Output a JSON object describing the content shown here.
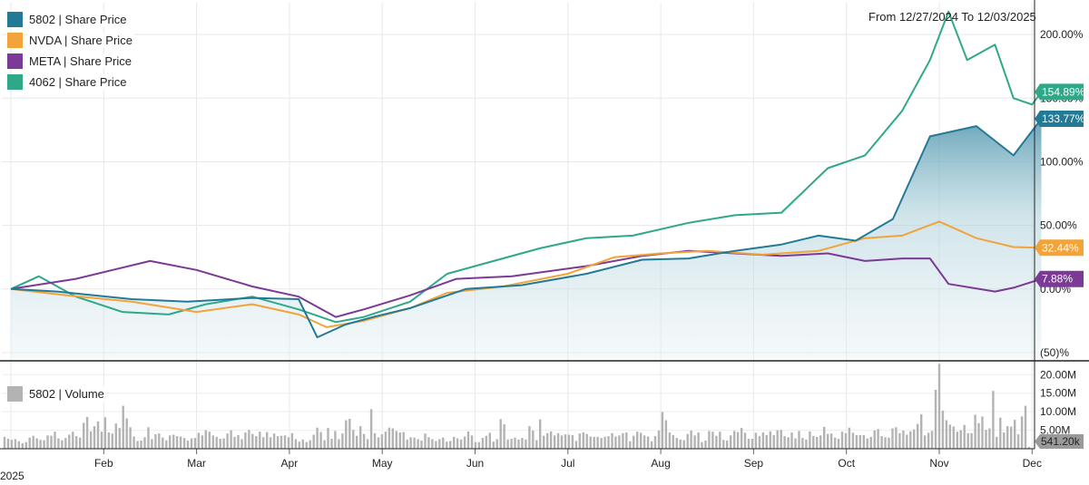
{
  "header": {
    "date_range": "From 12/27/2024 To 12/03/2025"
  },
  "chart_data": {
    "type": "line",
    "x_axis": {
      "months": [
        "Feb",
        "Mar",
        "Apr",
        "May",
        "Jun",
        "Jul",
        "Aug",
        "Sep",
        "Oct",
        "Nov",
        "Dec"
      ],
      "year_label": "2025"
    },
    "y_axis": {
      "tick_labels": [
        "200.00%",
        "150.00%",
        "100.00%",
        "50.00%",
        "0.00%",
        "(50)%"
      ],
      "tick_values": [
        200,
        150,
        100,
        50,
        0,
        -50
      ],
      "range": [
        -55,
        225
      ],
      "grid": true
    },
    "series": [
      {
        "name": "5802 | Share Price",
        "color": "#237a96",
        "end_label": "133.77%",
        "filled": true,
        "points": [
          [
            0,
            0
          ],
          [
            0.5,
            -2
          ],
          [
            1.3,
            -8
          ],
          [
            1.9,
            -10
          ],
          [
            2.6,
            -7
          ],
          [
            3.1,
            -8
          ],
          [
            3.3,
            -38
          ],
          [
            3.6,
            -28
          ],
          [
            3.9,
            -22
          ],
          [
            4.3,
            -15
          ],
          [
            4.9,
            0
          ],
          [
            5.5,
            3
          ],
          [
            6.2,
            12
          ],
          [
            6.8,
            23
          ],
          [
            7.3,
            24
          ],
          [
            7.8,
            30
          ],
          [
            8.3,
            35
          ],
          [
            8.7,
            42
          ],
          [
            9.1,
            38
          ],
          [
            9.5,
            55
          ],
          [
            9.9,
            120
          ],
          [
            10.4,
            128
          ],
          [
            10.8,
            105
          ],
          [
            11.1,
            133.77
          ]
        ]
      },
      {
        "name": "NVDA | Share Price",
        "color": "#f2a33a",
        "end_label": "32.44%",
        "filled": false,
        "points": [
          [
            0,
            0
          ],
          [
            0.6,
            -5
          ],
          [
            1.3,
            -10
          ],
          [
            2.0,
            -18
          ],
          [
            2.6,
            -12
          ],
          [
            3.1,
            -20
          ],
          [
            3.4,
            -30
          ],
          [
            3.8,
            -25
          ],
          [
            4.3,
            -15
          ],
          [
            4.7,
            -3
          ],
          [
            5.3,
            2
          ],
          [
            6.0,
            12
          ],
          [
            6.5,
            25
          ],
          [
            7.0,
            28
          ],
          [
            7.5,
            30
          ],
          [
            8.1,
            27
          ],
          [
            8.7,
            30
          ],
          [
            9.2,
            40
          ],
          [
            9.6,
            42
          ],
          [
            10.0,
            53
          ],
          [
            10.4,
            40
          ],
          [
            10.8,
            33
          ],
          [
            11.1,
            32.44
          ]
        ]
      },
      {
        "name": "META | Share Price",
        "color": "#7b3a96",
        "end_label": "7.88%",
        "filled": false,
        "points": [
          [
            0,
            0
          ],
          [
            0.7,
            8
          ],
          [
            1.5,
            22
          ],
          [
            2.0,
            15
          ],
          [
            2.6,
            2
          ],
          [
            3.1,
            -6
          ],
          [
            3.5,
            -22
          ],
          [
            3.8,
            -16
          ],
          [
            4.3,
            -5
          ],
          [
            4.8,
            8
          ],
          [
            5.4,
            10
          ],
          [
            6.2,
            18
          ],
          [
            6.8,
            26
          ],
          [
            7.3,
            30
          ],
          [
            7.8,
            28
          ],
          [
            8.3,
            26
          ],
          [
            8.8,
            28
          ],
          [
            9.2,
            22
          ],
          [
            9.6,
            24
          ],
          [
            9.9,
            24
          ],
          [
            10.1,
            4
          ],
          [
            10.6,
            -2
          ],
          [
            10.8,
            1
          ],
          [
            11.1,
            7.88
          ]
        ]
      },
      {
        "name": "4062 | Share Price",
        "color": "#2ea889",
        "end_label": "154.89%",
        "filled": false,
        "points": [
          [
            0,
            0
          ],
          [
            0.3,
            10
          ],
          [
            0.7,
            -6
          ],
          [
            1.2,
            -18
          ],
          [
            1.7,
            -20
          ],
          [
            2.1,
            -12
          ],
          [
            2.6,
            -6
          ],
          [
            3.1,
            -16
          ],
          [
            3.5,
            -26
          ],
          [
            3.8,
            -22
          ],
          [
            4.3,
            -10
          ],
          [
            4.7,
            12
          ],
          [
            5.2,
            22
          ],
          [
            5.7,
            32
          ],
          [
            6.2,
            40
          ],
          [
            6.7,
            42
          ],
          [
            7.3,
            52
          ],
          [
            7.8,
            58
          ],
          [
            8.3,
            60
          ],
          [
            8.8,
            95
          ],
          [
            9.2,
            105
          ],
          [
            9.6,
            140
          ],
          [
            9.9,
            180
          ],
          [
            10.1,
            218
          ],
          [
            10.3,
            180
          ],
          [
            10.6,
            192
          ],
          [
            10.8,
            150
          ],
          [
            11.0,
            145
          ],
          [
            11.1,
            154.89
          ]
        ]
      }
    ]
  },
  "volume_chart": {
    "legend": "5802 | Volume",
    "bar_color": "#b3b3b3",
    "tick_labels": [
      "20.00M",
      "15.00M",
      "10.00M",
      "5.00M"
    ],
    "tick_values": [
      20,
      15,
      10,
      5
    ],
    "range": [
      0,
      23
    ],
    "last_value_label": "541.20k",
    "values_millions": [
      3.2,
      2.7,
      2.4,
      2.6,
      2.0,
      1.5,
      1.8,
      3.0,
      3.5,
      2.8,
      2.4,
      2.3,
      3.6,
      3.5,
      4.6,
      2.8,
      2.3,
      2.9,
      3.8,
      4.6,
      3.4,
      3.0,
      7.0,
      8.6,
      4.7,
      6.1,
      7.4,
      4.6,
      8.5,
      4.4,
      4.1,
      6.8,
      5.6,
      11.6,
      8.2,
      5.8,
      3.3,
      2.1,
      2.2,
      3.1,
      5.8,
      2.6,
      3.9,
      4.1,
      3.0,
      2.3,
      3.6,
      3.8,
      3.4,
      3.3,
      2.9,
      2.2,
      2.8,
      2.9,
      4.3,
      3.6,
      5.0,
      4.6,
      3.6,
      3.2,
      2.7,
      2.8,
      4.1,
      5.0,
      3.2,
      3.7,
      2.6,
      4.4,
      5.1,
      4.0,
      3.4,
      4.6,
      3.1,
      4.5,
      3.1,
      4.1,
      3.4,
      3.5,
      3.6,
      3.1,
      4.2,
      2.6,
      1.9,
      2.5,
      1.8,
      2.3,
      3.8,
      5.7,
      4.5,
      2.3,
      5.6,
      2.7,
      4.8,
      2.6,
      4.1,
      7.7,
      8.1,
      5.1,
      3.5,
      6.1,
      4.0,
      2.6,
      10.7,
      4.2,
      3.1,
      3.9,
      4.6,
      5.7,
      5.5,
      4.8,
      4.4,
      4.5,
      2.5,
      3.1,
      3.0,
      2.6,
      2.2,
      4.1,
      3.1,
      2.6,
      2.1,
      2.6,
      3.0,
      1.9,
      2.1,
      3.2,
      2.8,
      2.5,
      3.3,
      4.7,
      3.6,
      1.8,
      1.8,
      2.9,
      3.5,
      4.3,
      1.9,
      2.6,
      8.0,
      6.6,
      2.5,
      2.7,
      3.0,
      2.5,
      2.9,
      2.5,
      6.1,
      4.9,
      2.3,
      7.9,
      3.5,
      4.2,
      4.7,
      3.6,
      4.2,
      3.6,
      3.9,
      3.8,
      3.7,
      2.1,
      4.1,
      4.4,
      4.0,
      3.3,
      3.2,
      3.2,
      2.9,
      3.2,
      3.4,
      4.2,
      3.3,
      3.6,
      4.2,
      4.4,
      2.0,
      3.5,
      4.6,
      4.3,
      3.6,
      3.3,
      2.0,
      3.4,
      4.9,
      9.9,
      7.7,
      4.4,
      3.7,
      2.9,
      2.5,
      2.3,
      4.0,
      4.9,
      3.6,
      4.4,
      1.8,
      2.2,
      4.8,
      4.6,
      3.5,
      4.6,
      2.4,
      2.2,
      3.6,
      4.8,
      4.5,
      5.6,
      4.3,
      2.7,
      2.7,
      4.3,
      3.4,
      4.4,
      3.7,
      4.7,
      3.7,
      5.0,
      5.1,
      3.4,
      3.1,
      4.4,
      2.8,
      4.8,
      2.9,
      2.5,
      4.7,
      3.4,
      3.2,
      3.6,
      5.9,
      4.0,
      4.1,
      3.0,
      2.7,
      4.6,
      4.2,
      5.7,
      4.3,
      3.7,
      3.7,
      3.7,
      2.8,
      3.2,
      4.9,
      5.3,
      3.4,
      3.1,
      3.0,
      5.5,
      5.8,
      4.2,
      4.9,
      3.8,
      4.7,
      5.2,
      6.7,
      9.3,
      3.6,
      4.3,
      4.8,
      15.9,
      22.9,
      10.3,
      7.7,
      6.5,
      6.0,
      4.6,
      5.0,
      6.4,
      4.2,
      4.2,
      9.2,
      6.9,
      8.7,
      5.1,
      5.5,
      15.6,
      3.2,
      8.4,
      4.4,
      6.1,
      6.0,
      7.8,
      3.9,
      8.7,
      11.6,
      0.5
    ]
  }
}
